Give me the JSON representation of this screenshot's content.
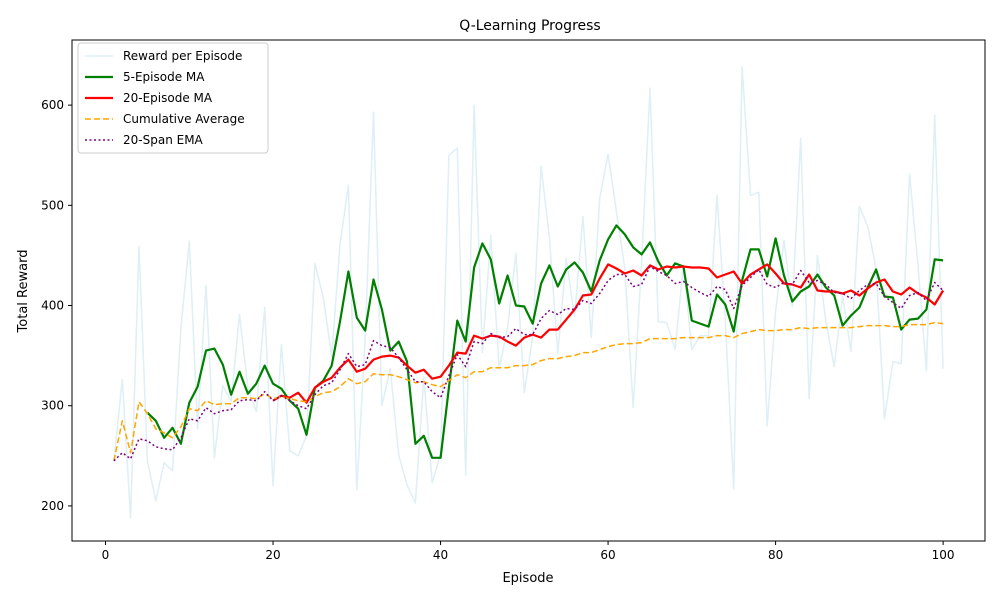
{
  "chart_data": {
    "type": "line",
    "title": "Q-Learning Progress",
    "xlabel": "Episode",
    "ylabel": "Total Reward",
    "xlim": [
      -4,
      105
    ],
    "ylim": [
      165,
      665
    ],
    "xticks": [
      0,
      20,
      40,
      60,
      80,
      100
    ],
    "yticks": [
      200,
      300,
      400,
      500,
      600
    ],
    "grid": false,
    "legend_position": "top-left",
    "x": [
      1,
      2,
      3,
      4,
      5,
      6,
      7,
      8,
      9,
      10,
      11,
      12,
      13,
      14,
      15,
      16,
      17,
      18,
      19,
      20,
      21,
      22,
      23,
      24,
      25,
      26,
      27,
      28,
      29,
      30,
      31,
      32,
      33,
      34,
      35,
      36,
      37,
      38,
      39,
      40,
      41,
      42,
      43,
      44,
      45,
      46,
      47,
      48,
      49,
      50,
      51,
      52,
      53,
      54,
      55,
      56,
      57,
      58,
      59,
      60,
      61,
      62,
      63,
      64,
      65,
      66,
      67,
      68,
      69,
      70,
      71,
      72,
      73,
      74,
      75,
      76,
      77,
      78,
      79,
      80,
      81,
      82,
      83,
      84,
      85,
      86,
      87,
      88,
      89,
      90,
      91,
      92,
      93,
      94,
      95,
      96,
      97,
      98,
      99,
      100
    ],
    "series": [
      {
        "name": "Reward per Episode",
        "color": "#add8e6",
        "style": "solid",
        "opacity": 0.4,
        "width": 1.5,
        "values": [
          245,
          326,
          188,
          459,
          245,
          205,
          243,
          235,
          377,
          464,
          277,
          420,
          248,
          320,
          304,
          391,
          318,
          294,
          398,
          220,
          361,
          255,
          250,
          270,
          442,
          408,
          349,
          461,
          520,
          216,
          368,
          593,
          300,
          337,
          251,
          221,
          203,
          329,
          223,
          252,
          550,
          557,
          231,
          600,
          353,
          470,
          337,
          378,
          452,
          313,
          369,
          539,
          468,
          352,
          447,
          389,
          489,
          368,
          507,
          551,
          494,
          437,
          298,
          443,
          617,
          384,
          383,
          356,
          441,
          356,
          370,
          370,
          510,
          385,
          217,
          638,
          510,
          513,
          280,
          394,
          465,
          399,
          567,
          307,
          450,
          384,
          339,
          409,
          354,
          499,
          479,
          437,
          287,
          344,
          342,
          531,
          440,
          335,
          590,
          337
        ]
      },
      {
        "name": "5-Episode MA",
        "color": "#008000",
        "style": "solid",
        "opacity": 1,
        "width": 2.2,
        "values": [
          null,
          null,
          null,
          null,
          293,
          285,
          268,
          278,
          262,
          303,
          319,
          355,
          357,
          341,
          311,
          334,
          312,
          322,
          340,
          322,
          317,
          305,
          297,
          271,
          318,
          325,
          340,
          384,
          434,
          388,
          375,
          426,
          396,
          355,
          364,
          344,
          262,
          270,
          248,
          248,
          318,
          385,
          364,
          438,
          462,
          446,
          402,
          430,
          400,
          399,
          382,
          422,
          440,
          419,
          436,
          443,
          433,
          414,
          445,
          466,
          480,
          471,
          458,
          451,
          463,
          444,
          430,
          442,
          439,
          385,
          382,
          379,
          411,
          401,
          374,
          425,
          456,
          456,
          429,
          467,
          430,
          404,
          414,
          419,
          431,
          418,
          410,
          380,
          390,
          398,
          418,
          436,
          409,
          408,
          376,
          386,
          387,
          396,
          446,
          445
        ]
      },
      {
        "name": "20-Episode MA",
        "color": "#ff0000",
        "style": "solid",
        "opacity": 1,
        "width": 2.2,
        "values": [
          null,
          null,
          null,
          null,
          null,
          null,
          null,
          null,
          null,
          null,
          null,
          null,
          null,
          null,
          null,
          null,
          null,
          null,
          null,
          305,
          310,
          308,
          313,
          303,
          318,
          324,
          328,
          338,
          346,
          334,
          337,
          346,
          349,
          350,
          348,
          340,
          333,
          336,
          327,
          329,
          340,
          353,
          352,
          370,
          367,
          370,
          369,
          364,
          360,
          368,
          371,
          368,
          376,
          376,
          386,
          396,
          410,
          411,
          427,
          441,
          437,
          432,
          435,
          430,
          440,
          436,
          439,
          438,
          439,
          438,
          438,
          437,
          428,
          431,
          434,
          422,
          431,
          436,
          441,
          432,
          422,
          421,
          418,
          431,
          415,
          414,
          414,
          412,
          415,
          410,
          417,
          423,
          426,
          414,
          411,
          418,
          412,
          408,
          401,
          415
        ]
      },
      {
        "name": "Cumulative Average",
        "color": "#ffa500",
        "style": "dashed",
        "opacity": 1,
        "width": 1.5,
        "values": [
          245,
          285,
          253,
          304,
          292,
          277,
          273,
          268,
          279,
          297,
          295,
          305,
          301,
          302,
          302,
          308,
          308,
          307,
          312,
          307,
          309,
          307,
          305,
          304,
          309,
          313,
          314,
          319,
          327,
          322,
          324,
          332,
          331,
          331,
          329,
          326,
          323,
          324,
          321,
          319,
          325,
          331,
          328,
          334,
          334,
          338,
          338,
          338,
          340,
          340,
          341,
          345,
          347,
          347,
          349,
          350,
          353,
          353,
          356,
          359,
          361,
          362,
          362,
          363,
          367,
          367,
          367,
          367,
          368,
          368,
          368,
          368,
          370,
          370,
          368,
          372,
          374,
          376,
          375,
          375,
          376,
          376,
          378,
          377,
          378,
          378,
          378,
          378,
          378,
          379,
          380,
          380,
          380,
          379,
          379,
          381,
          381,
          381,
          383,
          382
        ]
      },
      {
        "name": "20-Span EMA",
        "color": "#800080",
        "style": "dotted",
        "opacity": 1,
        "width": 1.5,
        "values": [
          245,
          253,
          247,
          267,
          265,
          259,
          257,
          256,
          268,
          287,
          285,
          298,
          292,
          295,
          296,
          305,
          306,
          305,
          314,
          305,
          310,
          305,
          300,
          297,
          311,
          320,
          323,
          336,
          352,
          339,
          341,
          365,
          360,
          358,
          348,
          336,
          324,
          324,
          314,
          308,
          330,
          351,
          339,
          364,
          362,
          372,
          368,
          369,
          377,
          371,
          371,
          387,
          395,
          391,
          397,
          396,
          405,
          402,
          412,
          425,
          431,
          431,
          419,
          421,
          439,
          434,
          430,
          422,
          424,
          418,
          413,
          409,
          419,
          416,
          397,
          420,
          428,
          436,
          421,
          418,
          423,
          421,
          435,
          423,
          425,
          421,
          413,
          412,
          407,
          415,
          421,
          422,
          409,
          403,
          397,
          410,
          413,
          405,
          423,
          415
        ]
      }
    ]
  }
}
